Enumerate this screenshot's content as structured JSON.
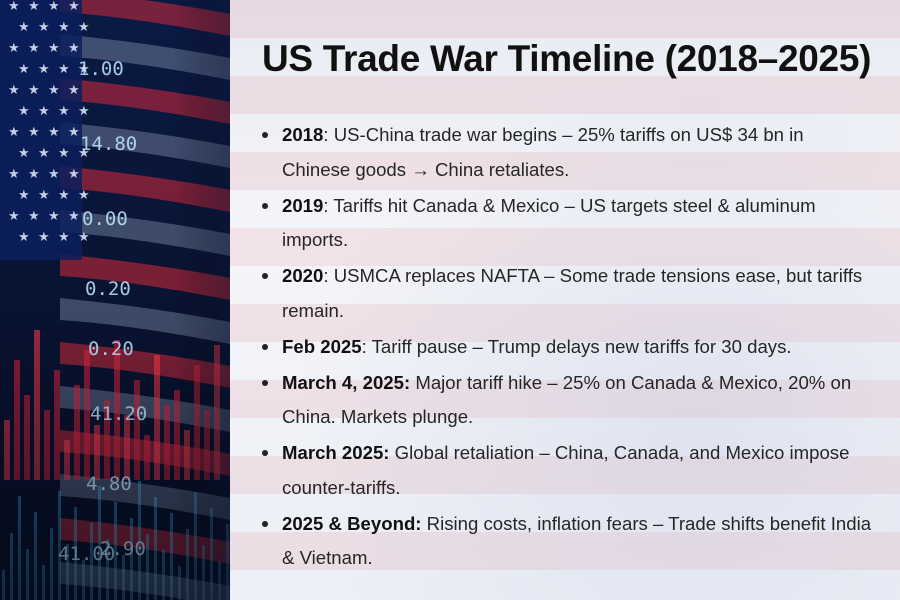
{
  "title": "US Trade War Timeline (2018–2025)",
  "entries": [
    {
      "period": "2018",
      "sep": ": ",
      "text": "US-China trade war begins – 25% tariffs on US$ 34 bn in Chinese goods → China retaliates."
    },
    {
      "period": "2019",
      "sep": ": ",
      "text": "Tariffs hit Canada & Mexico – US targets steel & aluminum imports."
    },
    {
      "period": "2020",
      "sep": ": ",
      "text": "USMCA replaces NAFTA – Some trade tensions ease, but tariffs remain."
    },
    {
      "period": "Feb 2025",
      "sep": ": ",
      "text": "Tariff pause – Trump delays new tariffs for 30 days."
    },
    {
      "period": "March 4, 2025:",
      "sep": " ",
      "text": "Major tariff hike – 25% on Canada & Mexico, 20% on China. Markets plunge."
    },
    {
      "period": "March 2025:",
      "sep": " ",
      "text": "Global retaliation – China, Canada, and Mexico impose counter-tariffs."
    },
    {
      "period": "2025 & Beyond:",
      "sep": " ",
      "text": "Rising costs, inflation fears – Trade shifts benefit India & Vietnam."
    }
  ],
  "ticker_numbers": [
    "1.00",
    "14.80",
    "0.00",
    "0.20",
    "0.20",
    "41.20",
    "4.80",
    "41.00",
    "2.90"
  ],
  "colors": {
    "title": "#111111",
    "body_text": "#262626",
    "flag_red": "#d62a3a",
    "flag_blue": "#0b1f5c",
    "ticker_cyan": "#5fd3ff"
  }
}
